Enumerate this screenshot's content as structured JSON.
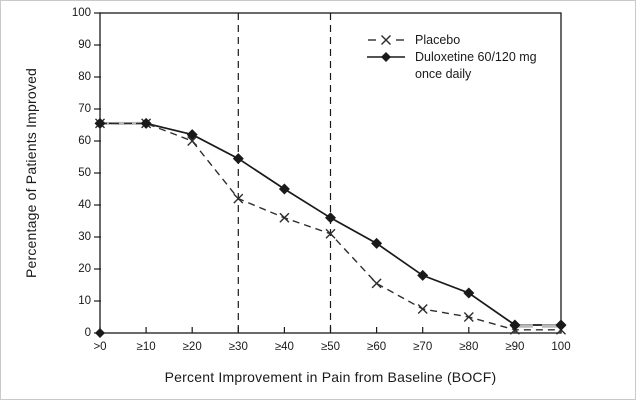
{
  "chart_data": {
    "type": "line",
    "title": "",
    "xlabel": "Percent Improvement in Pain from Baseline (BOCF)",
    "ylabel": "Percentage of Patients Improved",
    "categories": [
      ">0",
      "≥10",
      "≥20",
      "≥30",
      "≥40",
      "≥50",
      "≥60",
      "≥70",
      "≥80",
      "≥90",
      "100"
    ],
    "y_ticks": [
      0,
      10,
      20,
      30,
      40,
      50,
      60,
      70,
      80,
      90,
      100
    ],
    "ylim": [
      0,
      100
    ],
    "grid": false,
    "series": [
      {
        "name": "Placebo",
        "marker": "x",
        "line": "dashed",
        "color": "#2e2e2e",
        "values": [
          65.5,
          65.5,
          60,
          42,
          36,
          31,
          15.5,
          7.5,
          5,
          1,
          1
        ]
      },
      {
        "name": "Duloxetine 60/120 mg once daily",
        "marker": "diamond",
        "line": "solid",
        "color": "#1a1a1a",
        "values": [
          65.5,
          65.5,
          62,
          54.5,
          45,
          36,
          28,
          18,
          12.5,
          2.5,
          2.5
        ]
      }
    ],
    "reference_lines": {
      "style": "vertical-dashed",
      "at_categories": [
        "≥30",
        "≥50"
      ]
    },
    "overlap_color": "#b8b8b8",
    "axis_color": "#1a1a1a",
    "legend": {
      "position": "top-right-inside",
      "rows": [
        "Placebo",
        "Duloxetine 60/120 mg",
        "once daily"
      ]
    }
  }
}
